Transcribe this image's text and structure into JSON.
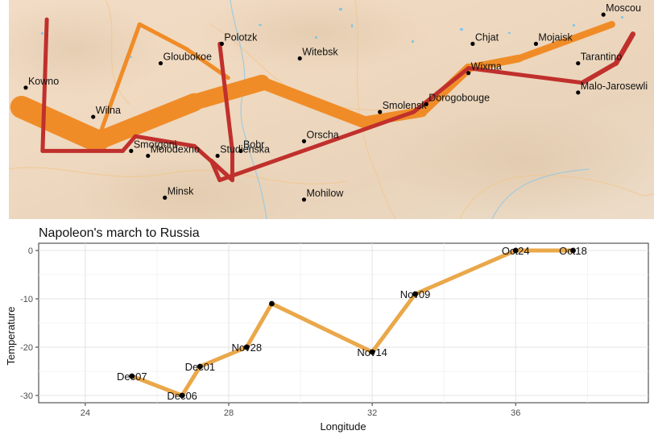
{
  "chart_data": [
    {
      "type": "line",
      "subtype": "flow-map",
      "basemap": "terrain",
      "xlim": [
        23.5,
        38.8
      ],
      "ylim": [
        53.7,
        55.95
      ],
      "colors": {
        "advance": "#f08c28",
        "retreat": "#c0302c",
        "city": "#000000"
      },
      "series": [
        {
          "name": "advance",
          "direction": "A",
          "color": "#f08c28",
          "points": [
            {
              "lon": 23.8,
              "lat": 54.85,
              "survivors": 420000
            },
            {
              "lon": 25.6,
              "lat": 54.5,
              "survivors": 340000
            },
            {
              "lon": 27.9,
              "lat": 54.9,
              "survivors": 300000
            },
            {
              "lon": 29.5,
              "lat": 55.1,
              "survivors": 230000
            },
            {
              "lon": 31.9,
              "lat": 54.7,
              "survivors": 190000
            },
            {
              "lon": 33.3,
              "lat": 54.8,
              "survivors": 175000
            },
            {
              "lon": 34.4,
              "lat": 55.25,
              "survivors": 145000
            },
            {
              "lon": 35.6,
              "lat": 55.35,
              "survivors": 127100
            },
            {
              "lon": 37.8,
              "lat": 55.7,
              "survivors": 100000
            }
          ]
        },
        {
          "name": "advance-branch",
          "direction": "A",
          "color": "#f08c28",
          "points": [
            {
              "lon": 25.6,
              "lat": 54.5,
              "survivors": 60000
            },
            {
              "lon": 26.6,
              "lat": 55.7,
              "survivors": 40000
            },
            {
              "lon": 27.7,
              "lat": 55.45,
              "survivors": 33000
            },
            {
              "lon": 28.7,
              "lat": 55.15,
              "survivors": 28000
            }
          ]
        },
        {
          "name": "retreat",
          "direction": "R",
          "color": "#c0302c",
          "points": [
            {
              "lon": 38.3,
              "lat": 55.6,
              "survivors": 96000
            },
            {
              "lon": 37.9,
              "lat": 55.3,
              "survivors": 87000
            },
            {
              "lon": 37.1,
              "lat": 55.1,
              "survivors": 55000
            },
            {
              "lon": 34.4,
              "lat": 55.25,
              "survivors": 37000
            },
            {
              "lon": 33.1,
              "lat": 54.8,
              "survivors": 24000
            },
            {
              "lon": 28.5,
              "lat": 54.1,
              "survivors": 20000
            },
            {
              "lon": 28.3,
              "lat": 54.3,
              "survivors": 20000
            },
            {
              "lon": 28.8,
              "lat": 54.1,
              "survivors": 12000
            },
            {
              "lon": 27.9,
              "lat": 54.45,
              "survivors": 10000
            },
            {
              "lon": 26.5,
              "lat": 54.55,
              "survivors": 10000
            },
            {
              "lon": 26.2,
              "lat": 54.4,
              "survivors": 8000
            },
            {
              "lon": 24.3,
              "lat": 54.4,
              "survivors": 6000
            },
            {
              "lon": 24.4,
              "lat": 55.75,
              "survivors": 6000
            }
          ]
        },
        {
          "name": "retreat-branch",
          "direction": "R",
          "color": "#c0302c",
          "points": [
            {
              "lon": 28.8,
              "lat": 54.1,
              "survivors": 15000
            },
            {
              "lon": 28.8,
              "lat": 54.4,
              "survivors": 14000
            },
            {
              "lon": 28.5,
              "lat": 55.5,
              "survivors": 8000
            }
          ]
        }
      ],
      "cities": [
        {
          "name": "Kowno",
          "lon": 23.9,
          "lat": 55.05
        },
        {
          "name": "Wilna",
          "lon": 25.5,
          "lat": 54.75
        },
        {
          "name": "Smorgoni",
          "lon": 26.4,
          "lat": 54.4
        },
        {
          "name": "Moiodexno",
          "lon": 26.8,
          "lat": 54.35
        },
        {
          "name": "Gloubokoe",
          "lon": 27.1,
          "lat": 55.3
        },
        {
          "name": "Minsk",
          "lon": 27.2,
          "lat": 53.92
        },
        {
          "name": "Studienska",
          "lon": 28.45,
          "lat": 54.35
        },
        {
          "name": "Polotzk",
          "lon": 28.55,
          "lat": 55.5
        },
        {
          "name": "Bobr",
          "lon": 29.0,
          "lat": 54.4
        },
        {
          "name": "Witebsk",
          "lon": 30.4,
          "lat": 55.35
        },
        {
          "name": "Orscha",
          "lon": 30.5,
          "lat": 54.5
        },
        {
          "name": "Mohilow",
          "lon": 30.5,
          "lat": 53.9
        },
        {
          "name": "Smolensk",
          "lon": 32.3,
          "lat": 54.8
        },
        {
          "name": "Dorogobouge",
          "lon": 33.4,
          "lat": 54.88
        },
        {
          "name": "Wixma",
          "lon": 34.4,
          "lat": 55.2
        },
        {
          "name": "Chjat",
          "lon": 34.5,
          "lat": 55.5
        },
        {
          "name": "Mojaisk",
          "lon": 36.0,
          "lat": 55.5
        },
        {
          "name": "Tarantino",
          "lon": 37.0,
          "lat": 55.3
        },
        {
          "name": "Moscou",
          "lon": 37.6,
          "lat": 55.8
        },
        {
          "name": "Malo-Jarosewli",
          "lon": 37.0,
          "lat": 55.0
        }
      ]
    },
    {
      "type": "line",
      "title": "Napoleon's march to Russia",
      "xlabel": "Longitude",
      "ylabel": "Temperature",
      "xlim": [
        22.7,
        39.7
      ],
      "ylim": [
        -31.5,
        1.5
      ],
      "xticks": [
        24,
        28,
        32,
        36
      ],
      "yticks": [
        0,
        -10,
        -20,
        -30
      ],
      "grid": true,
      "line_color": "#eaa84a",
      "points": [
        {
          "lon": 37.6,
          "temp": 0,
          "date": "Oct18"
        },
        {
          "lon": 36.0,
          "temp": 0,
          "date": "Oct24"
        },
        {
          "lon": 33.2,
          "temp": -9,
          "date": "Nov09"
        },
        {
          "lon": 32.0,
          "temp": -21,
          "date": "Nov14"
        },
        {
          "lon": 29.2,
          "temp": -11,
          "date": ""
        },
        {
          "lon": 28.5,
          "temp": -20,
          "date": "Nov28"
        },
        {
          "lon": 27.2,
          "temp": -24,
          "date": "Dec01"
        },
        {
          "lon": 26.7,
          "temp": -30,
          "date": "Dec06"
        },
        {
          "lon": 25.3,
          "temp": -26,
          "date": "Dec07"
        }
      ]
    }
  ]
}
